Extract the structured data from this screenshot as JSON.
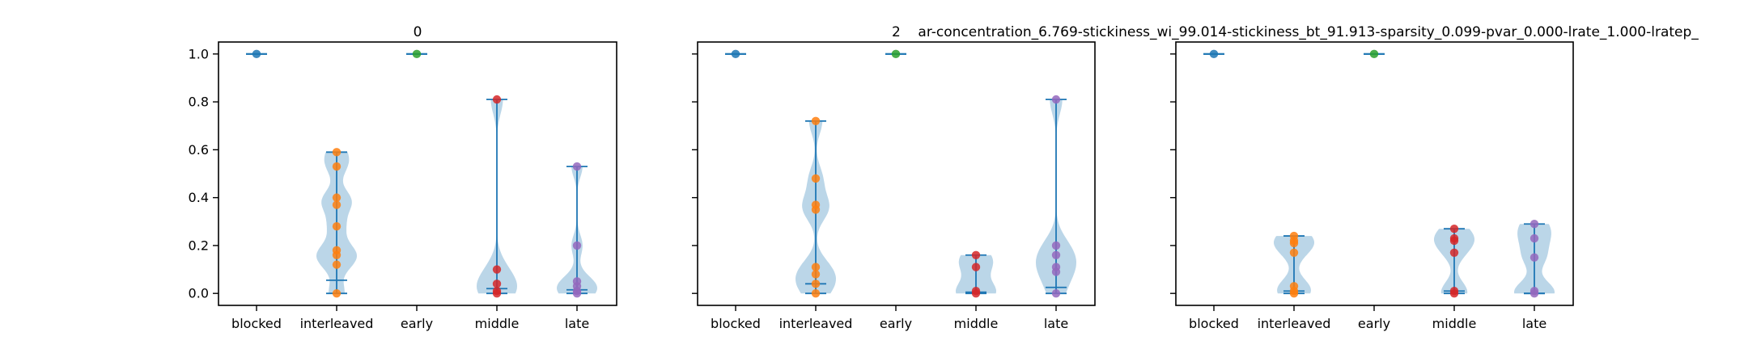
{
  "figure": {
    "colors": {
      "violin_fill": "#1f77b4",
      "violin_line": "#1f77b4",
      "blocked": "#1f77b4",
      "interleaved": "#ff7f0e",
      "early": "#2ca02c",
      "middle": "#d62728",
      "late": "#9467bd"
    }
  },
  "chart_data": [
    {
      "type": "violin",
      "title": "0",
      "categories": [
        "blocked",
        "interleaved",
        "early",
        "middle",
        "late"
      ],
      "ylim": [
        -0.05,
        1.05
      ],
      "yticks": [
        0.0,
        0.2,
        0.4,
        0.6,
        0.8,
        1.0
      ],
      "ytick_labels": [
        "0.0",
        "0.2",
        "0.4",
        "0.6",
        "0.8",
        "1.0"
      ],
      "grid": false,
      "series": [
        {
          "category": "blocked",
          "points": [
            1.0
          ],
          "median": 1.0,
          "max": 1.0,
          "min": 1.0
        },
        {
          "category": "interleaved",
          "points": [
            0.59,
            0.53,
            0.4,
            0.37,
            0.28,
            0.18,
            0.16,
            0.12,
            0.0
          ],
          "median": 0.055,
          "max": 0.59,
          "min": 0.0
        },
        {
          "category": "early",
          "points": [
            1.0
          ],
          "median": 1.0,
          "max": 1.0,
          "min": 1.0
        },
        {
          "category": "middle",
          "points": [
            0.81,
            0.1,
            0.04,
            0.01,
            0.0
          ],
          "median": 0.02,
          "max": 0.81,
          "min": 0.0
        },
        {
          "category": "late",
          "points": [
            0.53,
            0.2,
            0.05,
            0.03,
            0.01,
            0.0
          ],
          "median": 0.015,
          "max": 0.53,
          "min": 0.0
        }
      ]
    },
    {
      "type": "violin",
      "title": "2    ar-concentration_6.769-stickiness_wi_99.014-stickiness_bt_91.913-sparsity_0.099-pvar_0.000-lrate_1.000-lratep_",
      "categories": [
        "blocked",
        "interleaved",
        "early",
        "middle",
        "late"
      ],
      "ylim": [
        -0.05,
        1.05
      ],
      "grid": false,
      "series": [
        {
          "category": "blocked",
          "points": [
            1.0
          ],
          "median": 1.0,
          "max": 1.0,
          "min": 1.0
        },
        {
          "category": "interleaved",
          "points": [
            0.72,
            0.48,
            0.37,
            0.35,
            0.11,
            0.08,
            0.04,
            0.0
          ],
          "median": 0.04,
          "max": 0.72,
          "min": 0.0
        },
        {
          "category": "early",
          "points": [
            1.0
          ],
          "median": 1.0,
          "max": 1.0,
          "min": 1.0
        },
        {
          "category": "middle",
          "points": [
            0.16,
            0.11,
            0.01,
            0.0
          ],
          "median": 0.005,
          "max": 0.16,
          "min": 0.0
        },
        {
          "category": "late",
          "points": [
            0.81,
            0.2,
            0.16,
            0.11,
            0.09,
            0.0
          ],
          "median": 0.025,
          "max": 0.81,
          "min": 0.0
        }
      ]
    },
    {
      "type": "violin",
      "title": "",
      "categories": [
        "blocked",
        "interleaved",
        "early",
        "middle",
        "late"
      ],
      "ylim": [
        -0.05,
        1.05
      ],
      "grid": false,
      "series": [
        {
          "category": "blocked",
          "points": [
            1.0
          ],
          "median": 1.0,
          "max": 1.0,
          "min": 1.0
        },
        {
          "category": "interleaved",
          "points": [
            0.24,
            0.22,
            0.21,
            0.17,
            0.03,
            0.01,
            0.0
          ],
          "median": 0.01,
          "max": 0.24,
          "min": 0.0
        },
        {
          "category": "early",
          "points": [
            1.0
          ],
          "median": 1.0,
          "max": 1.0,
          "min": 1.0
        },
        {
          "category": "middle",
          "points": [
            0.27,
            0.23,
            0.22,
            0.17,
            0.01,
            0.0
          ],
          "median": 0.01,
          "max": 0.27,
          "min": 0.0
        },
        {
          "category": "late",
          "points": [
            0.29,
            0.23,
            0.15,
            0.01,
            0.0
          ],
          "median": 0.0,
          "max": 0.29,
          "min": 0.0
        }
      ]
    }
  ]
}
